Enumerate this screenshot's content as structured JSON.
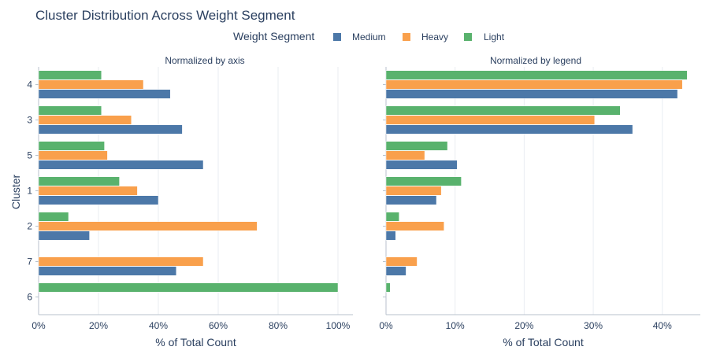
{
  "chart_data": {
    "type": "bar",
    "orientation": "horizontal",
    "title": "Cluster Distribution Across Weight Segment",
    "legend_title": "Weight Segment",
    "legend_placement": "top-center",
    "ylabel": "Cluster",
    "categories": [
      "4",
      "3",
      "5",
      "1",
      "2",
      "7",
      "6"
    ],
    "colors": {
      "Medium": "#4c78a8",
      "Heavy": "#f9a04c",
      "Light": "#59b26d"
    },
    "series_order": [
      "Medium",
      "Heavy",
      "Light"
    ],
    "panels": [
      {
        "subtitle": "Normalized by axis",
        "xlabel": "% of Total Count",
        "xlim": [
          0,
          105
        ],
        "ticks": [
          0,
          20,
          40,
          60,
          80,
          100
        ],
        "tick_labels": [
          "0%",
          "20%",
          "40%",
          "60%",
          "80%",
          "100%"
        ],
        "series": [
          {
            "name": "Medium",
            "values": [
              44,
              48,
              55,
              40,
              17,
              46,
              null
            ]
          },
          {
            "name": "Heavy",
            "values": [
              35,
              31,
              23,
              33,
              73,
              55,
              null
            ]
          },
          {
            "name": "Light",
            "values": [
              21,
              21,
              22,
              27,
              10,
              null,
              100
            ]
          }
        ]
      },
      {
        "subtitle": "Normalized by legend",
        "xlabel": "% of Total Count",
        "xlim": [
          0,
          45.5
        ],
        "ticks": [
          0,
          10,
          20,
          30,
          40
        ],
        "tick_labels": [
          "0%",
          "10%",
          "20%",
          "30%",
          "40%"
        ],
        "series": [
          {
            "name": "Medium",
            "values": [
              42.2,
              35.7,
              10.3,
              7.3,
              1.4,
              2.9,
              null
            ]
          },
          {
            "name": "Heavy",
            "values": [
              42.9,
              30.2,
              5.6,
              8.0,
              8.4,
              4.5,
              null
            ]
          },
          {
            "name": "Light",
            "values": [
              43.6,
              33.9,
              8.9,
              10.9,
              1.9,
              null,
              0.6
            ]
          }
        ]
      }
    ]
  }
}
